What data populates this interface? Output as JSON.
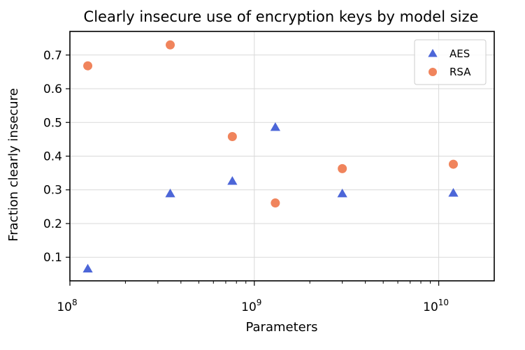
{
  "chart_data": {
    "type": "scatter",
    "title": "Clearly insecure use of encryption keys by model size",
    "xlabel": "Parameters",
    "ylabel": "Fraction clearly insecure",
    "xscale": "log",
    "xlim": [
      100000000,
      20000000000
    ],
    "ylim": [
      0.03,
      0.77
    ],
    "grid": true,
    "legend_position": "top-right",
    "x_ticks": [
      {
        "base": "10",
        "exp": "8",
        "value": 100000000
      },
      {
        "base": "10",
        "exp": "9",
        "value": 1000000000
      },
      {
        "base": "10",
        "exp": "10",
        "value": 10000000000
      }
    ],
    "y_ticks": [
      {
        "label": "0.1",
        "value": 0.1
      },
      {
        "label": "0.2",
        "value": 0.2
      },
      {
        "label": "0.3",
        "value": 0.3
      },
      {
        "label": "0.4",
        "value": 0.4
      },
      {
        "label": "0.5",
        "value": 0.5
      },
      {
        "label": "0.6",
        "value": 0.6
      },
      {
        "label": "0.7",
        "value": 0.7
      }
    ],
    "series": [
      {
        "name": "AES",
        "marker": "triangle",
        "color": "#4c66d8",
        "x": [
          125000000,
          350000000,
          760000000,
          1300000000,
          3000000000,
          12000000000
        ],
        "y": [
          0.065,
          0.288,
          0.325,
          0.485,
          0.288,
          0.29
        ]
      },
      {
        "name": "RSA",
        "marker": "circle",
        "color": "#f0845c",
        "x": [
          125000000,
          350000000,
          760000000,
          1300000000,
          3000000000,
          12000000000
        ],
        "y": [
          0.668,
          0.73,
          0.458,
          0.261,
          0.363,
          0.376
        ]
      }
    ]
  }
}
